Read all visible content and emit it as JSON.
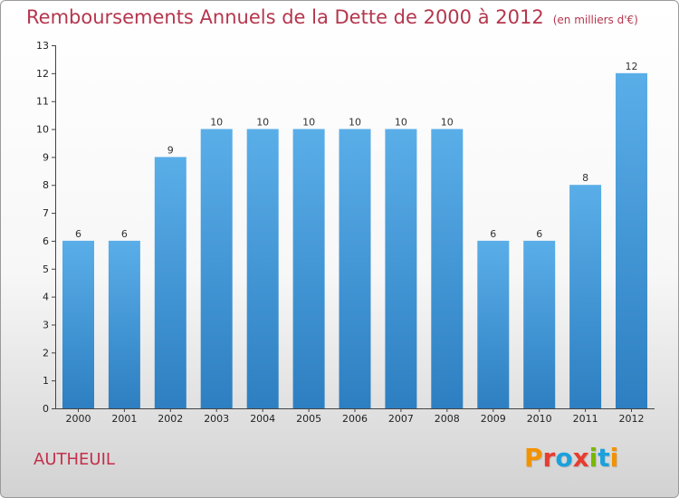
{
  "header": {
    "title": "Remboursements Annuels de la Dette de 2000 à 2012",
    "unit": "(en milliers d'€)"
  },
  "footer": {
    "commune": "AUTHEUIL",
    "logo_text": "Proxiti",
    "logo_colors": [
      "#f39200",
      "#e73c2f",
      "#1ba1dc",
      "#e73c2f",
      "#7ab800",
      "#1ba1dc",
      "#f39200"
    ]
  },
  "colors": {
    "bar_top": "#5aaee8",
    "bar_bottom": "#2d7fc1",
    "accent": "#b5364d"
  },
  "chart_data": {
    "type": "bar",
    "title": "Remboursements Annuels de la Dette de 2000 à 2012",
    "subtitle": "(en milliers d'€)",
    "xlabel": "",
    "ylabel": "",
    "categories": [
      "2000",
      "2001",
      "2002",
      "2003",
      "2004",
      "2005",
      "2006",
      "2007",
      "2008",
      "2009",
      "2010",
      "2011",
      "2012"
    ],
    "values": [
      6,
      6,
      9,
      10,
      10,
      10,
      10,
      10,
      10,
      6,
      6,
      8,
      12
    ],
    "data_labels": [
      "6",
      "6",
      "9",
      "10",
      "10",
      "10",
      "10",
      "10",
      "10",
      "6",
      "6",
      "8",
      "12"
    ],
    "yticks": [
      "0",
      "1",
      "2",
      "3",
      "4",
      "5",
      "6",
      "7",
      "8",
      "9",
      "10",
      "11",
      "12",
      "13"
    ],
    "ylim": [
      0,
      13
    ],
    "grid": false,
    "legend": "none"
  }
}
